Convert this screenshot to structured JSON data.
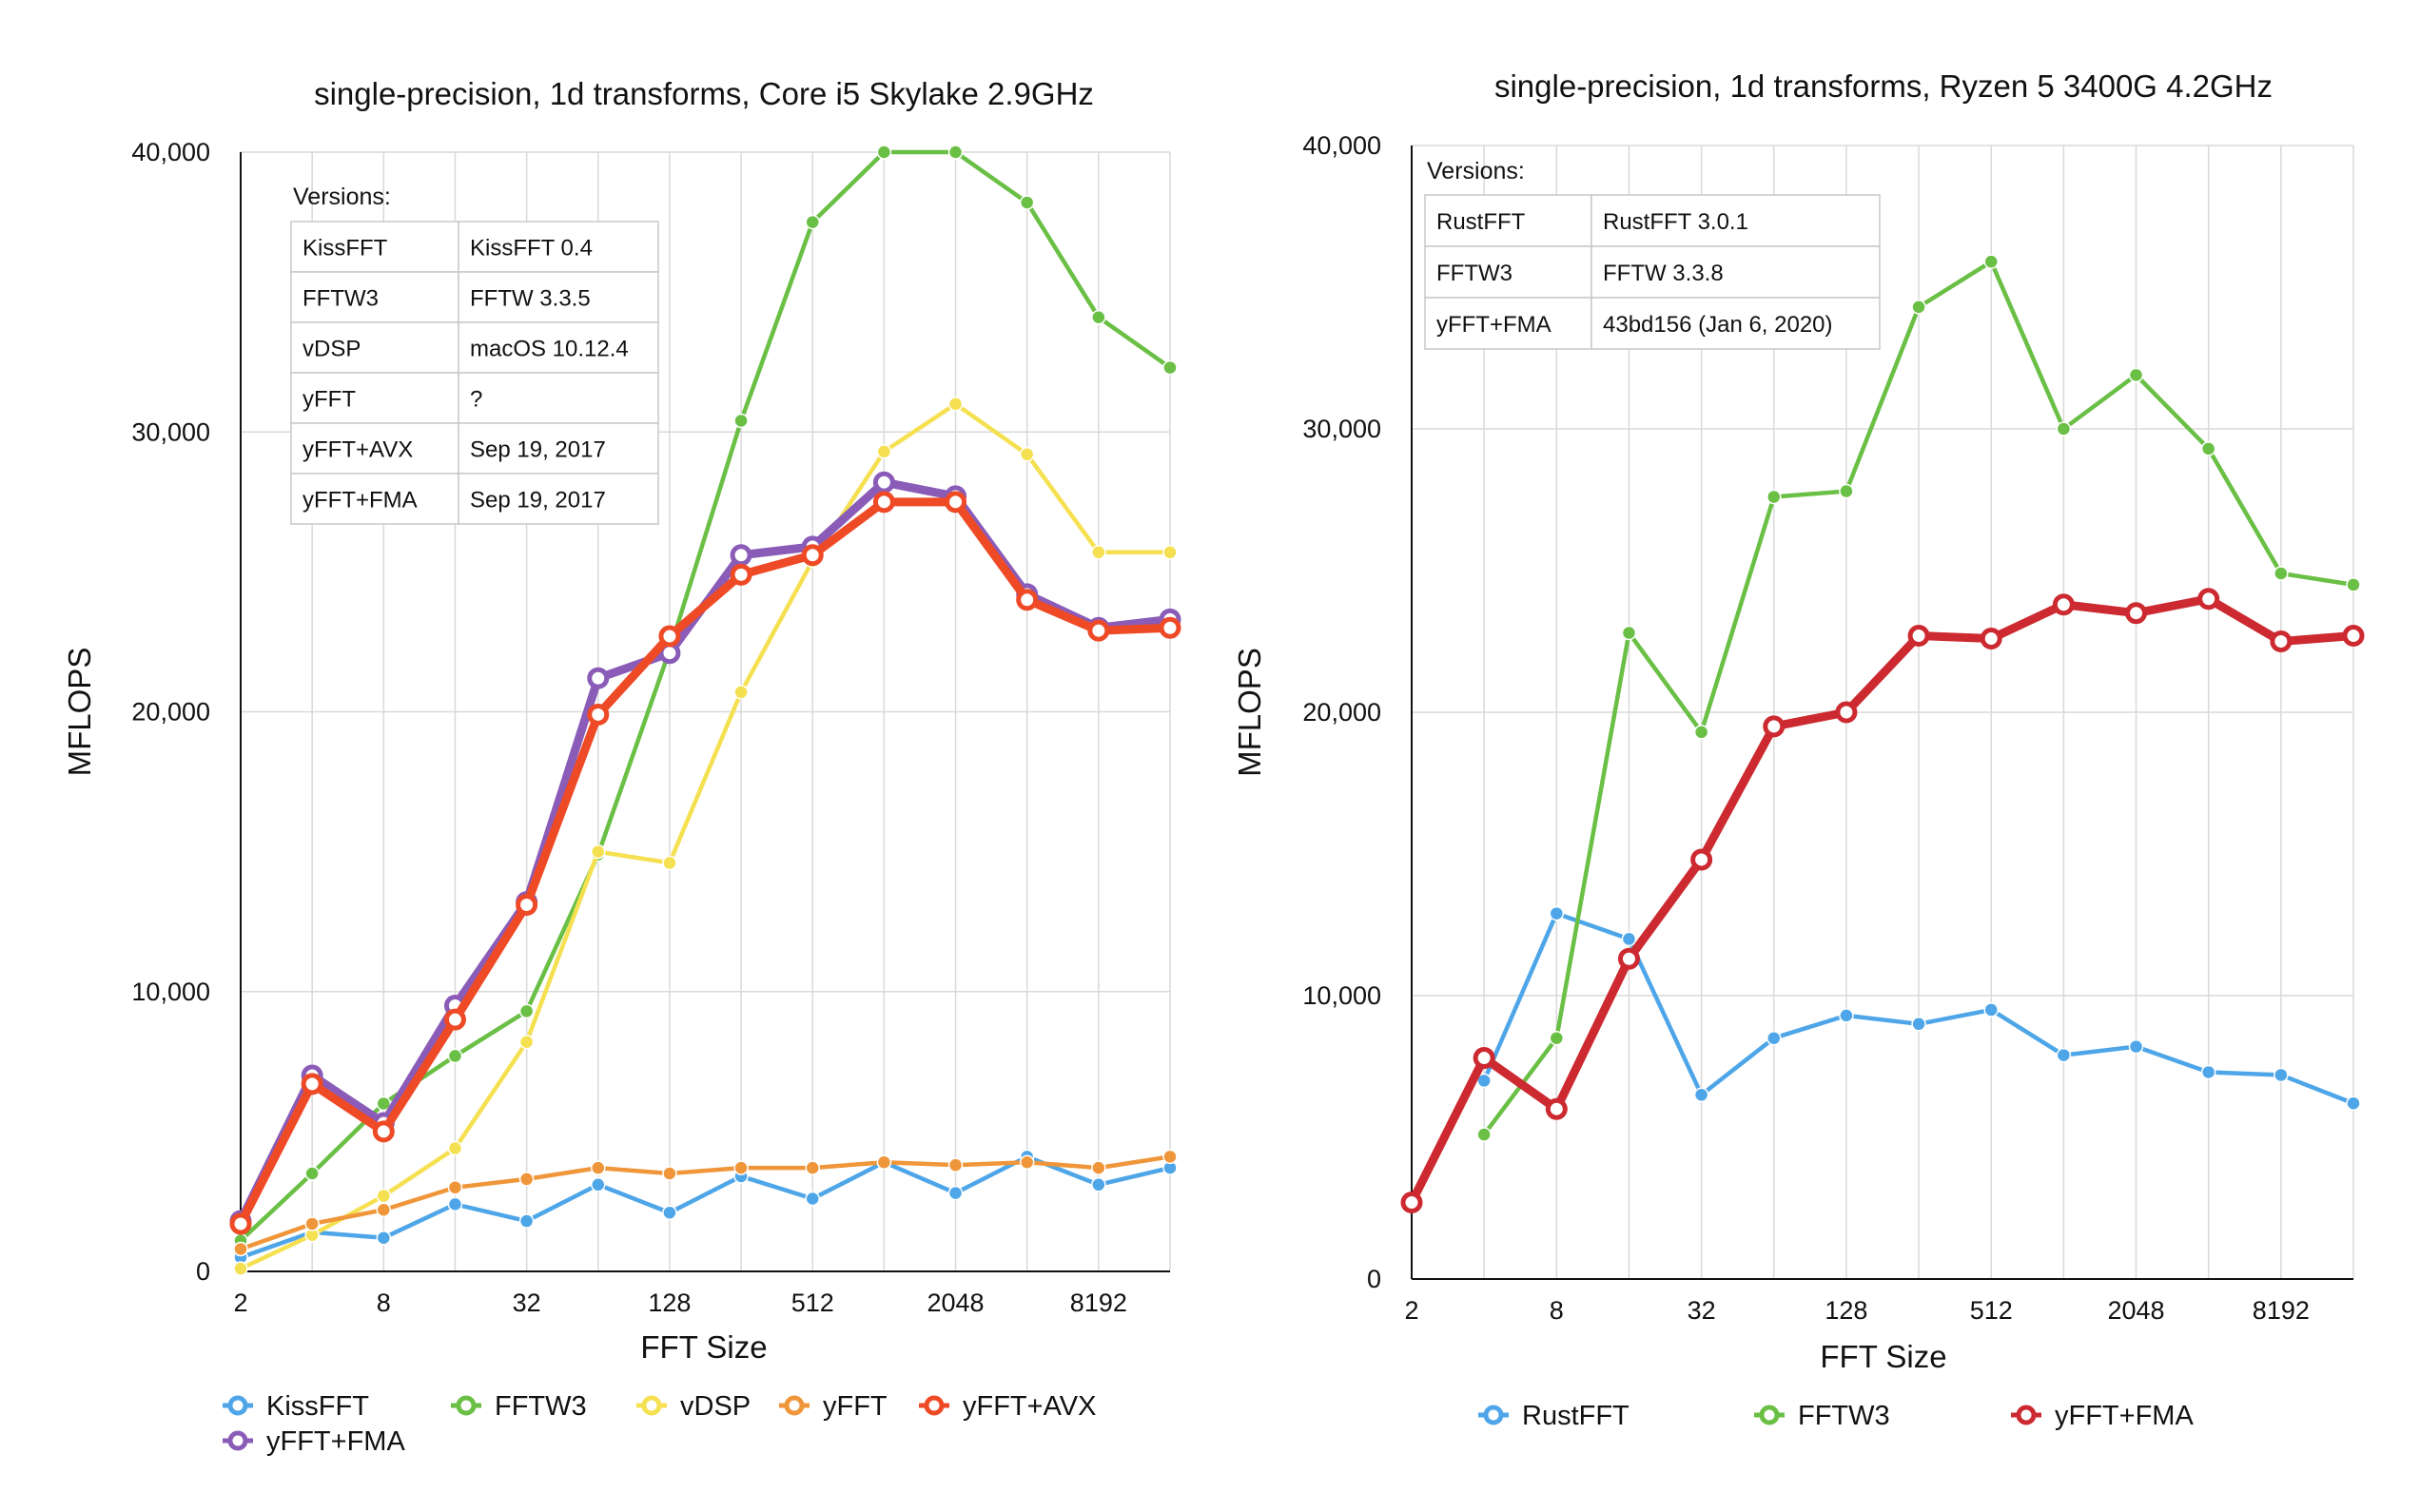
{
  "colors": {
    "KissFFT": "#4ea6e8",
    "RustFFT": "#4ea6e8",
    "FFTW3": "#6abf45",
    "vDSP": "#f5e051",
    "yFFT": "#f0963a",
    "yFFT+AVX": "#ee4a26",
    "yFFT+FMA_purple": "#8a5cb8",
    "yFFT+FMA_red": "#cc2a30",
    "grid": "#d9d9d9"
  },
  "chart_data": [
    {
      "type": "line",
      "title": "single-precision, 1d transforms, Core i5 Skylake 2.9GHz",
      "xlabel": "FFT Size",
      "ylabel": "MFLOPS",
      "x": [
        2,
        4,
        8,
        16,
        32,
        64,
        128,
        256,
        512,
        1024,
        2048,
        4096,
        8192,
        16384
      ],
      "x_tick_labels": [
        "2",
        "8",
        "32",
        "128",
        "512",
        "2048",
        "8192"
      ],
      "y_tick_labels": [
        "0",
        "10,000",
        "20,000",
        "30,000",
        "40,000"
      ],
      "ylim": [
        0,
        40000
      ],
      "grid": true,
      "legend_position": "bottom",
      "versions": {
        "header": "Versions:",
        "rows": [
          [
            "KissFFT",
            "KissFFT 0.4"
          ],
          [
            "FFTW3",
            "FFTW 3.3.5"
          ],
          [
            "vDSP",
            "macOS 10.12.4"
          ],
          [
            "yFFT",
            "?"
          ],
          [
            "yFFT+AVX",
            "Sep 19, 2017"
          ],
          [
            "yFFT+FMA",
            "Sep 19, 2017"
          ]
        ]
      },
      "series": [
        {
          "name": "KissFFT",
          "color_key": "KissFFT",
          "style": "thin",
          "values": [
            500,
            1400,
            1200,
            2400,
            1800,
            3100,
            2100,
            3400,
            2600,
            3900,
            2800,
            4100,
            3100,
            3700
          ]
        },
        {
          "name": "FFTW3",
          "color_key": "FFTW3",
          "style": "thin",
          "values": [
            1100,
            3500,
            6000,
            7700,
            9300,
            14900,
            22200,
            30400,
            37500,
            40000,
            40000,
            38200,
            34100,
            32300
          ]
        },
        {
          "name": "vDSP",
          "color_key": "vDSP",
          "style": "thin",
          "values": [
            100,
            1300,
            2700,
            4400,
            8200,
            15000,
            14600,
            20700,
            25400,
            29300,
            31000,
            29200,
            25700,
            25700
          ]
        },
        {
          "name": "yFFT",
          "color_key": "yFFT",
          "style": "thin",
          "values": [
            800,
            1700,
            2200,
            3000,
            3300,
            3700,
            3500,
            3700,
            3700,
            3900,
            3800,
            3900,
            3700,
            4100
          ]
        },
        {
          "name": "yFFT+FMA",
          "color_key": "yFFT+FMA_purple",
          "style": "thick",
          "values": [
            1800,
            7000,
            5300,
            9500,
            13200,
            21200,
            22100,
            25600,
            25900,
            28200,
            27700,
            24200,
            23000,
            23300
          ]
        },
        {
          "name": "yFFT+AVX",
          "color_key": "yFFT+AVX",
          "style": "thick",
          "values": [
            1700,
            6700,
            5000,
            9000,
            13100,
            19900,
            22700,
            24900,
            25600,
            27500,
            27500,
            24000,
            22900,
            23000
          ]
        }
      ],
      "legend": [
        {
          "name": "KissFFT",
          "color_key": "KissFFT"
        },
        {
          "name": "FFTW3",
          "color_key": "FFTW3"
        },
        {
          "name": "vDSP",
          "color_key": "vDSP"
        },
        {
          "name": "yFFT",
          "color_key": "yFFT"
        },
        {
          "name": "yFFT+AVX",
          "color_key": "yFFT+AVX"
        },
        {
          "name": "yFFT+FMA",
          "color_key": "yFFT+FMA_purple"
        }
      ]
    },
    {
      "type": "line",
      "title": "single-precision, 1d transforms, Ryzen 5 3400G 4.2GHz",
      "xlabel": "FFT Size",
      "ylabel": "MFLOPS",
      "x": [
        2,
        4,
        8,
        16,
        32,
        64,
        128,
        256,
        512,
        1024,
        2048,
        4096,
        8192,
        16384
      ],
      "x_tick_labels": [
        "2",
        "8",
        "32",
        "128",
        "512",
        "2048",
        "8192"
      ],
      "y_tick_labels": [
        "0",
        "10,000",
        "20,000",
        "30,000",
        "40,000"
      ],
      "ylim": [
        0,
        40000
      ],
      "grid": true,
      "legend_position": "bottom",
      "versions": {
        "header": "Versions:",
        "rows": [
          [
            "RustFFT",
            "RustFFT 3.0.1"
          ],
          [
            "FFTW3",
            "FFTW 3.3.8"
          ],
          [
            "yFFT+FMA",
            "43bd156 (Jan 6, 2020)"
          ]
        ]
      },
      "series": [
        {
          "name": "RustFFT",
          "color_key": "RustFFT",
          "style": "thin",
          "values": [
            null,
            7000,
            12900,
            12000,
            6500,
            8500,
            9300,
            9000,
            9500,
            7900,
            8200,
            7300,
            7200,
            6200
          ]
        },
        {
          "name": "FFTW3",
          "color_key": "FFTW3",
          "style": "thin",
          "values": [
            null,
            5100,
            8500,
            22800,
            19300,
            27600,
            27800,
            34300,
            35900,
            30000,
            31900,
            29300,
            24900,
            24500
          ]
        },
        {
          "name": "yFFT+FMA",
          "color_key": "yFFT+FMA_red",
          "style": "thick",
          "values": [
            2700,
            7800,
            6000,
            11300,
            14800,
            19500,
            20000,
            22700,
            22600,
            23800,
            23500,
            24000,
            22500,
            22700
          ]
        }
      ],
      "legend": [
        {
          "name": "RustFFT",
          "color_key": "RustFFT"
        },
        {
          "name": "FFTW3",
          "color_key": "FFTW3"
        },
        {
          "name": "yFFT+FMA",
          "color_key": "yFFT+FMA_red"
        }
      ]
    }
  ]
}
